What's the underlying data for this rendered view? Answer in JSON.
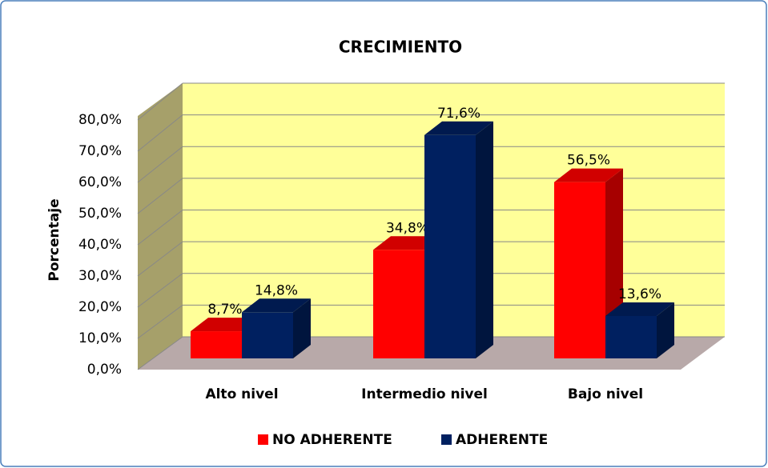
{
  "chart_data": {
    "type": "bar3d",
    "title": "CRECIMIENTO",
    "y_label": "Porcentaje",
    "categories": [
      "Alto nivel",
      "Intermedio nivel",
      "Bajo nivel"
    ],
    "series": [
      {
        "name": "NO ADHERENTE",
        "color": "#ff0000",
        "values": [
          8.7,
          34.8,
          56.5
        ],
        "value_labels": [
          "8,7%",
          "34,8%",
          "56,5%"
        ]
      },
      {
        "name": "ADHERENTE",
        "color": "#002060",
        "values": [
          14.8,
          71.6,
          13.6
        ],
        "value_labels": [
          "14,8%",
          "71,6%",
          "13,6%"
        ]
      }
    ],
    "ylim": [
      0,
      80
    ],
    "yticks": [
      {
        "value": 0,
        "label": "0,0%"
      },
      {
        "value": 10,
        "label": "10,0%"
      },
      {
        "value": 20,
        "label": "20,0%"
      },
      {
        "value": 30,
        "label": "30,0%"
      },
      {
        "value": 40,
        "label": "40,0%"
      },
      {
        "value": 50,
        "label": "50,0%"
      },
      {
        "value": 60,
        "label": "60,0%"
      },
      {
        "value": 70,
        "label": "70,0%"
      },
      {
        "value": 80,
        "label": "80,0%"
      }
    ],
    "grid": true
  }
}
